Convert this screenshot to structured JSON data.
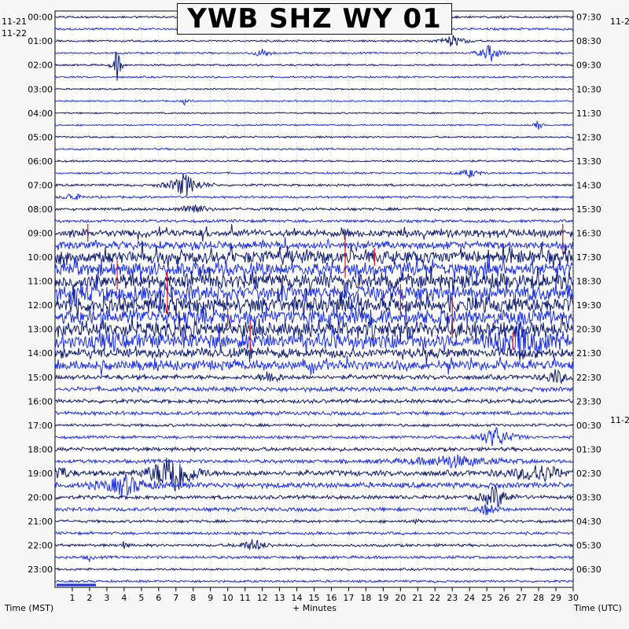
{
  "title": "YWB SHZ WY 01",
  "left_dates": {
    "top": "11-21",
    "second": "11-22"
  },
  "right_dates": {
    "top": "11-2",
    "mid": "11-2"
  },
  "footer": {
    "left": "Time (MST)",
    "center": "+ Minutes",
    "right": "Time (UTC)"
  },
  "colors": {
    "dark": "#0d1a6e",
    "blue": "#1a2fe0",
    "red": "#e01010",
    "background": "#f7f7f7"
  },
  "chart_data": {
    "type": "line",
    "title": "YWB SHZ WY 01",
    "xlabel": "+ Minutes",
    "ylabel_left": "Time (MST)",
    "ylabel_right": "Time (UTC)",
    "xlim": [
      0,
      30
    ],
    "x_ticks": [
      1,
      2,
      3,
      4,
      5,
      6,
      7,
      8,
      9,
      10,
      11,
      12,
      13,
      14,
      15,
      16,
      17,
      18,
      19,
      20,
      21,
      22,
      23,
      24,
      25,
      26,
      27,
      28,
      29,
      30
    ],
    "trace_minutes": 30,
    "trace_colors_cycle": [
      "dark",
      "blue"
    ],
    "left_hour_labels": [
      "00:00",
      "01:00",
      "02:00",
      "03:00",
      "04:00",
      "05:00",
      "06:00",
      "07:00",
      "08:00",
      "09:00",
      "10:00",
      "11:00",
      "12:00",
      "13:00",
      "14:00",
      "15:00",
      "16:00",
      "17:00",
      "18:00",
      "19:00",
      "20:00",
      "21:00",
      "22:00",
      "23:00"
    ],
    "right_hour_labels": [
      "07:30",
      "08:30",
      "09:30",
      "10:30",
      "11:30",
      "12:30",
      "13:30",
      "14:30",
      "15:30",
      "16:30",
      "17:30",
      "18:30",
      "19:30",
      "20:30",
      "21:30",
      "22:30",
      "23:30",
      "00:30",
      "01:30",
      "02:30",
      "03:30",
      "04:30",
      "05:30",
      "06:30"
    ],
    "noise_by_hour": [
      1.2,
      1.0,
      1.0,
      0.8,
      0.8,
      1.0,
      1.0,
      1.2,
      1.5,
      4.0,
      7.0,
      8.0,
      8.0,
      8.0,
      5.0,
      2.5,
      2.0,
      1.5,
      2.0,
      3.0,
      2.0,
      1.5,
      1.5,
      1.2
    ],
    "events": [
      {
        "hour": 0,
        "row": 1,
        "minute": 9.0,
        "amp": 6,
        "dur": 0.6
      },
      {
        "hour": 1,
        "row": 0,
        "minute": 23.0,
        "amp": 8,
        "dur": 1.5
      },
      {
        "hour": 1,
        "row": 1,
        "minute": 12.0,
        "amp": 6,
        "dur": 1.0
      },
      {
        "hour": 1,
        "row": 1,
        "minute": 25.2,
        "amp": 12,
        "dur": 1.2
      },
      {
        "hour": 2,
        "row": 0,
        "minute": 3.6,
        "amp": 22,
        "dur": 0.5
      },
      {
        "hour": 3,
        "row": 1,
        "minute": 7.5,
        "amp": 4,
        "dur": 0.4
      },
      {
        "hour": 4,
        "row": 1,
        "minute": 28.0,
        "amp": 8,
        "dur": 0.4
      },
      {
        "hour": 6,
        "row": 1,
        "minute": 24.0,
        "amp": 6,
        "dur": 1.2
      },
      {
        "hour": 7,
        "row": 0,
        "minute": 7.5,
        "amp": 16,
        "dur": 1.8
      },
      {
        "hour": 7,
        "row": 1,
        "minute": 1.0,
        "amp": 6,
        "dur": 1.0
      },
      {
        "hour": 8,
        "row": 0,
        "minute": 8.0,
        "amp": 10,
        "dur": 1.2
      },
      {
        "hour": 13,
        "row": 1,
        "minute": 27.0,
        "amp": 14,
        "dur": 3.0
      },
      {
        "hour": 15,
        "row": 0,
        "minute": 12.5,
        "amp": 10,
        "dur": 1.0
      },
      {
        "hour": 15,
        "row": 0,
        "minute": 29.0,
        "amp": 10,
        "dur": 1.2
      },
      {
        "hour": 17,
        "row": 1,
        "minute": 25.5,
        "amp": 14,
        "dur": 2.0
      },
      {
        "hour": 18,
        "row": 1,
        "minute": 23.0,
        "amp": 8,
        "dur": 5.0
      },
      {
        "hour": 19,
        "row": 0,
        "minute": 6.8,
        "amp": 34,
        "dur": 2.2
      },
      {
        "hour": 19,
        "row": 0,
        "minute": 0.2,
        "amp": 12,
        "dur": 1.0
      },
      {
        "hour": 19,
        "row": 0,
        "minute": 28.0,
        "amp": 12,
        "dur": 3.0
      },
      {
        "hour": 19,
        "row": 1,
        "minute": 4.0,
        "amp": 14,
        "dur": 2.5
      },
      {
        "hour": 20,
        "row": 0,
        "minute": 25.5,
        "amp": 16,
        "dur": 1.5
      },
      {
        "hour": 20,
        "row": 1,
        "minute": 25.0,
        "amp": 8,
        "dur": 1.0
      },
      {
        "hour": 21,
        "row": 0,
        "minute": 21.0,
        "amp": 4,
        "dur": 0.4
      },
      {
        "hour": 22,
        "row": 0,
        "minute": 4.0,
        "amp": 6,
        "dur": 0.4
      },
      {
        "hour": 22,
        "row": 0,
        "minute": 11.5,
        "amp": 8,
        "dur": 1.5
      },
      {
        "hour": 22,
        "row": 1,
        "minute": 2.0,
        "amp": 4,
        "dur": 0.4
      }
    ],
    "red_spikes_minutes": [
      1.9,
      3.6,
      6.5,
      10.0,
      11.3,
      16.8,
      18.5,
      20.0,
      23.0,
      26.5,
      29.4
    ]
  }
}
